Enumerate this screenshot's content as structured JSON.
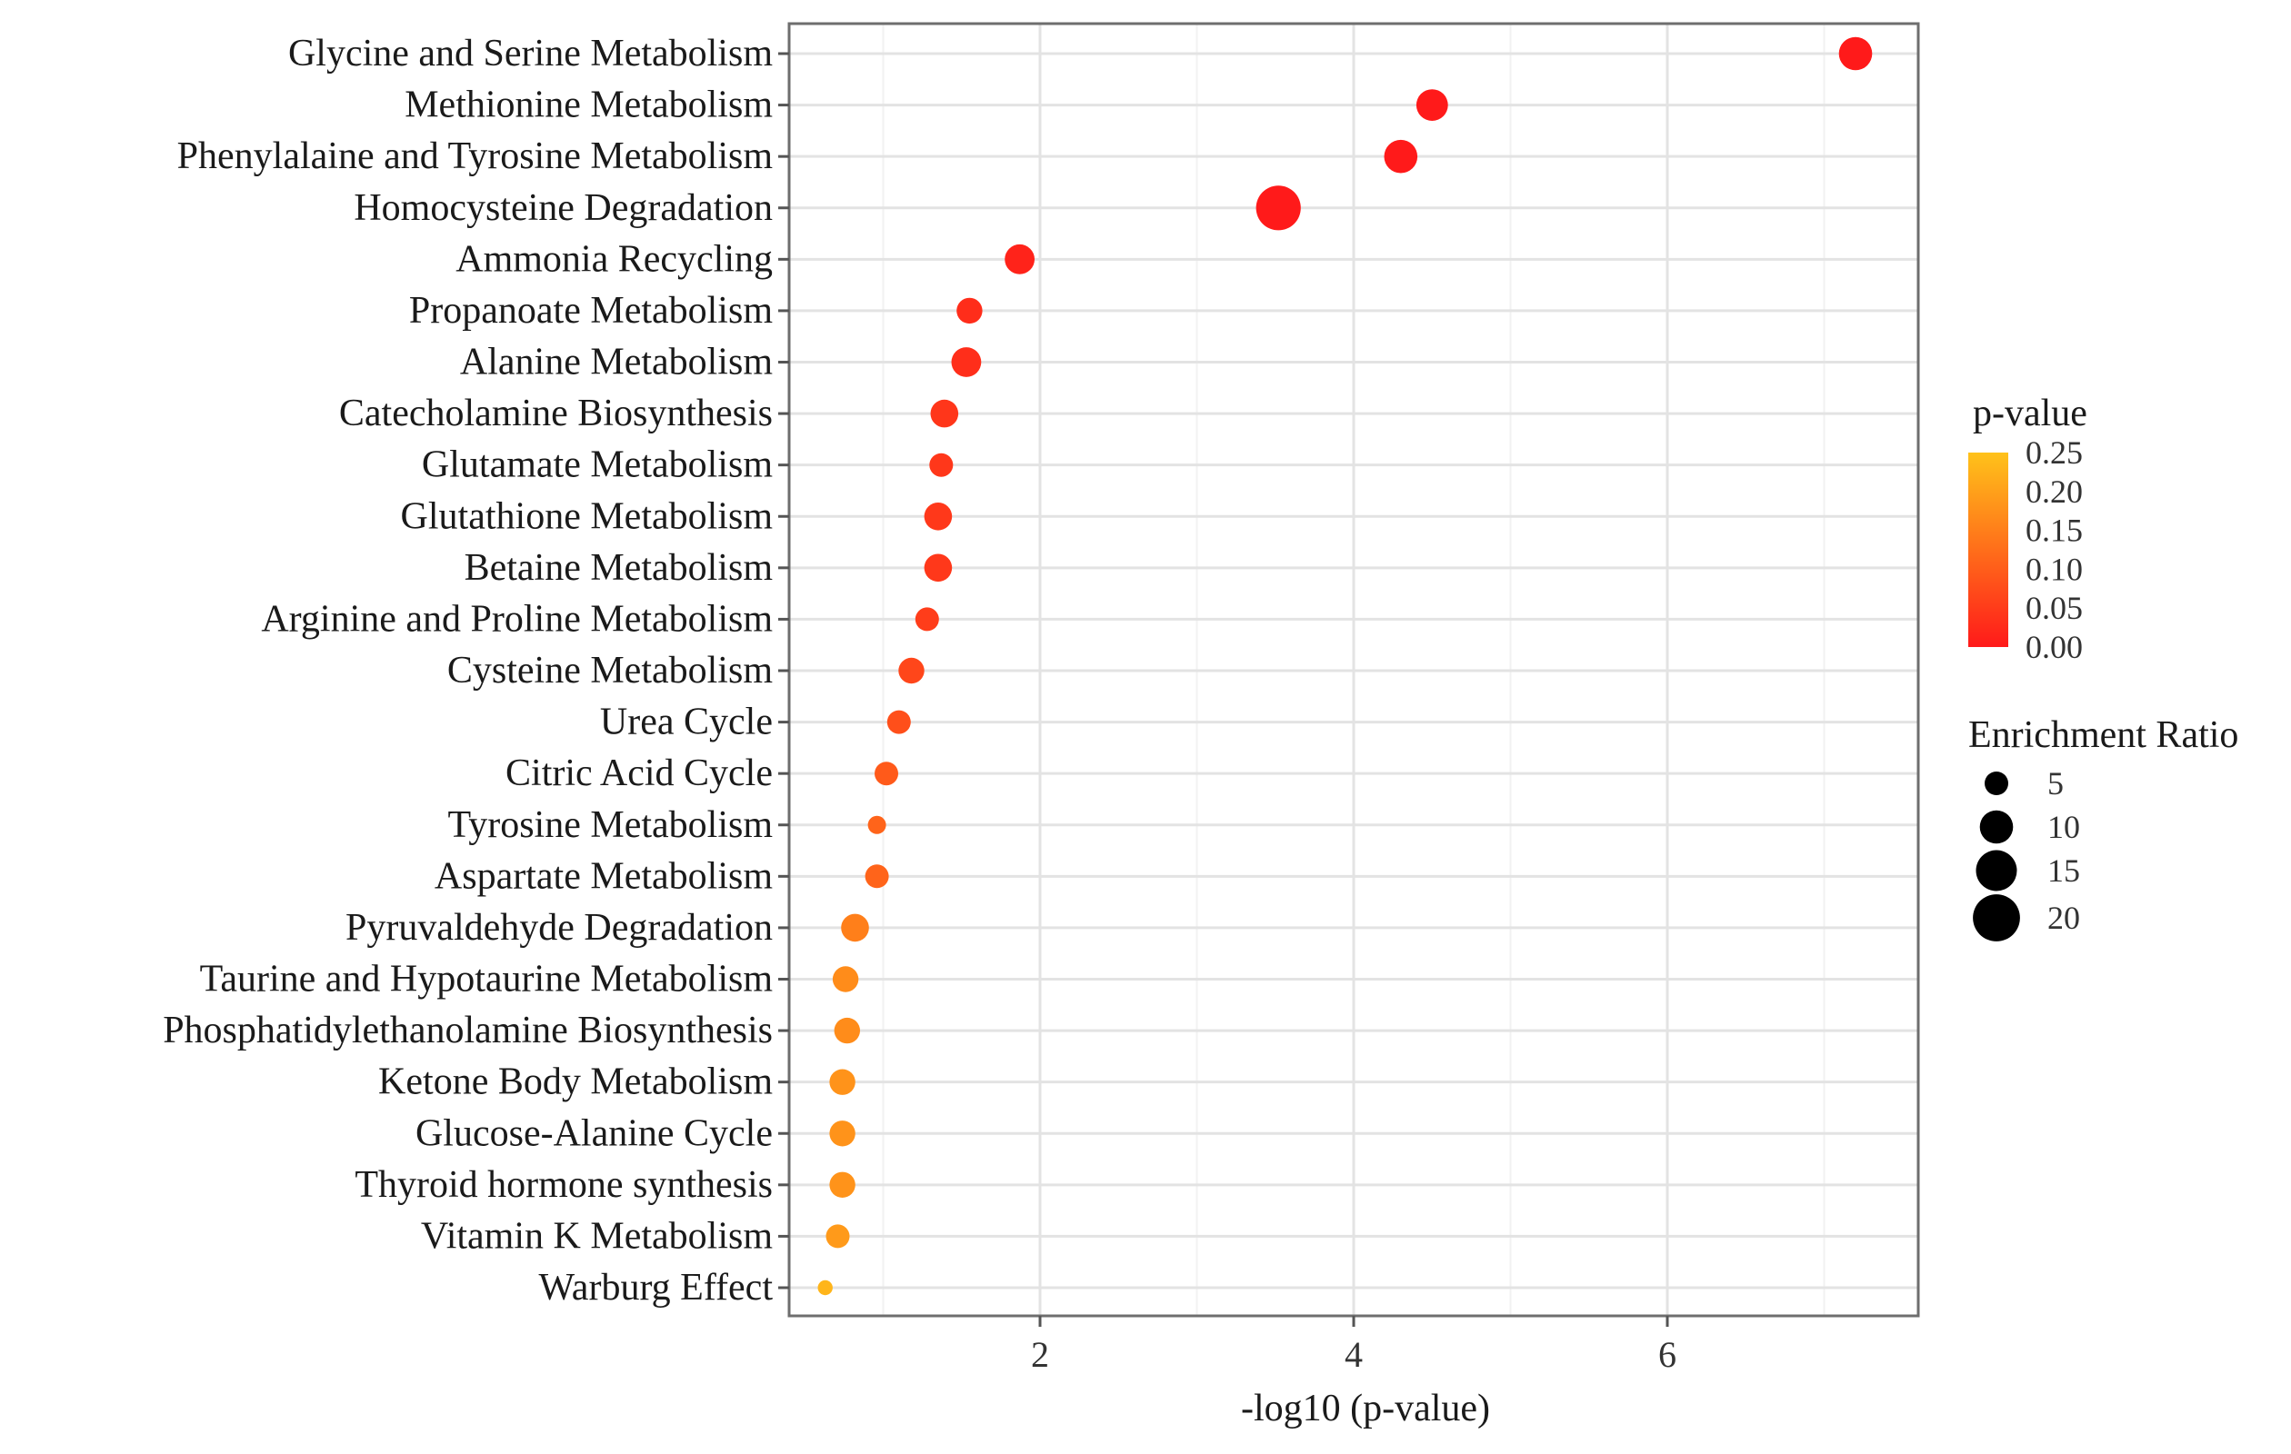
{
  "chart_data": {
    "type": "scatter",
    "title": "",
    "xlabel": "-log10 (p-value)",
    "ylabel": "",
    "xlim": [
      0.4,
      7.6
    ],
    "xticks": [
      2,
      4,
      6
    ],
    "xtick_labels": [
      "2",
      "4",
      "6"
    ],
    "grid": true,
    "categories": [
      "Glycine and Serine Metabolism",
      "Methionine Metabolism",
      "Phenylalaine and Tyrosine Metabolism",
      "Homocysteine Degradation",
      "Ammonia Recycling",
      "Propanoate Metabolism",
      "Alanine Metabolism",
      "Catecholamine Biosynthesis",
      "Glutamate Metabolism",
      "Glutathione Metabolism",
      "Betaine Metabolism",
      "Arginine and Proline Metabolism",
      "Cysteine Metabolism",
      "Urea Cycle",
      "Citric Acid Cycle",
      "Tyrosine Metabolism",
      "Aspartate Metabolism",
      "Pyruvaldehyde Degradation",
      "Taurine and Hypotaurine Metabolism",
      "Phosphatidylethanolamine Biosynthesis",
      "Ketone Body Metabolism",
      "Glucose-Alanine Cycle",
      "Thyroid hormone synthesis",
      "Vitamin K Metabolism",
      "Warburg Effect"
    ],
    "neg_log10_p": [
      7.2,
      4.5,
      4.3,
      3.52,
      1.87,
      1.55,
      1.53,
      1.39,
      1.37,
      1.35,
      1.35,
      1.28,
      1.18,
      1.1,
      1.02,
      0.96,
      0.96,
      0.82,
      0.76,
      0.77,
      0.74,
      0.74,
      0.74,
      0.71,
      0.63
    ],
    "p_value": [
      0.0,
      0.0,
      0.0,
      0.0003,
      0.013,
      0.028,
      0.03,
      0.041,
      0.043,
      0.045,
      0.045,
      0.052,
      0.066,
      0.079,
      0.095,
      0.11,
      0.11,
      0.15,
      0.17,
      0.17,
      0.18,
      0.18,
      0.18,
      0.19,
      0.23
    ],
    "enrichment_ratio": [
      10,
      9,
      10,
      18,
      8,
      6,
      8,
      7,
      5,
      7,
      7,
      5,
      6,
      5,
      5,
      3,
      5,
      7,
      6,
      6,
      6,
      6,
      6,
      5,
      2
    ],
    "color_scale": {
      "title": "p-value",
      "low_color": "#ff1a1a",
      "high_color": "#ffc21a",
      "range": [
        0.0,
        0.25
      ],
      "tick_labels": [
        "0.25",
        "0.20",
        "0.15",
        "0.10",
        "0.05",
        "0.00"
      ],
      "tick_values": [
        0.25,
        0.2,
        0.15,
        0.1,
        0.05,
        0.0
      ]
    },
    "size_legend": {
      "title": "Enrichment Ratio",
      "values": [
        5,
        10,
        15,
        20
      ],
      "labels": [
        "5",
        "10",
        "15",
        "20"
      ],
      "marker_color": "#000000"
    },
    "legend_position": "right"
  }
}
